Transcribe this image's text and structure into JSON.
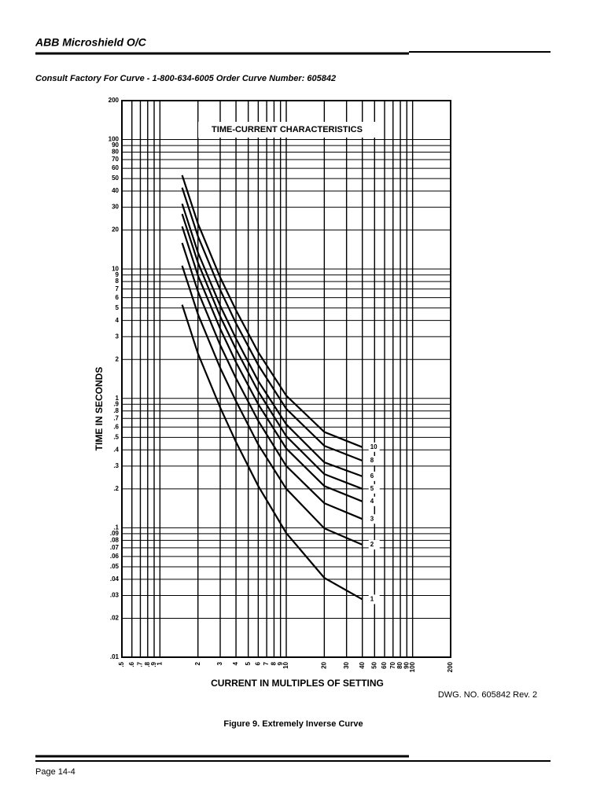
{
  "header": {
    "title": "ABB Microshield O/C"
  },
  "subtitle": "Consult Factory For Curve - 1-800-634-6005  Order Curve Number:  605842",
  "chart_data": {
    "type": "line",
    "title": "TIME-CURRENT CHARACTERISTICS",
    "x_label": "CURRENT IN MULTIPLES OF SETTING",
    "y_label": "TIME IN SECONDS",
    "log_x": true,
    "log_y": true,
    "grid": true,
    "xlim": [
      0.5,
      200
    ],
    "ylim": [
      0.01,
      200
    ],
    "xticks": [
      {
        "value": 0.5,
        "label": ".5"
      },
      {
        "value": 0.6,
        "label": ".6"
      },
      {
        "value": 0.7,
        "label": ".7"
      },
      {
        "value": 0.8,
        "label": ".8"
      },
      {
        "value": 0.9,
        "label": ".9"
      },
      1,
      2,
      3,
      4,
      5,
      6,
      7,
      8,
      9,
      10,
      20,
      30,
      40,
      50,
      60,
      70,
      80,
      90,
      100,
      200
    ],
    "yticks": [
      {
        "value": 0.01,
        "label": ".01"
      },
      {
        "value": 0.02,
        "label": ".02"
      },
      {
        "value": 0.03,
        "label": ".03"
      },
      {
        "value": 0.04,
        "label": ".04"
      },
      {
        "value": 0.05,
        "label": ".05"
      },
      {
        "value": 0.06,
        "label": ".06"
      },
      {
        "value": 0.07,
        "label": ".07"
      },
      {
        "value": 0.08,
        "label": ".08"
      },
      {
        "value": 0.09,
        "label": ".09"
      },
      {
        "value": 0.1,
        "label": ".1"
      },
      {
        "value": 0.2,
        "label": ".2"
      },
      {
        "value": 0.3,
        "label": ".3"
      },
      {
        "value": 0.4,
        "label": ".4"
      },
      {
        "value": 0.5,
        "label": ".5"
      },
      {
        "value": 0.6,
        "label": ".6"
      },
      {
        "value": 0.7,
        "label": ".7"
      },
      {
        "value": 0.8,
        "label": ".8"
      },
      {
        "value": 0.9,
        "label": ".9"
      },
      1,
      2,
      3,
      4,
      5,
      6,
      7,
      8,
      9,
      10,
      20,
      30,
      40,
      50,
      60,
      70,
      80,
      90,
      100,
      200
    ],
    "x": [
      1.5,
      2,
      3,
      4,
      6,
      10,
      20,
      40
    ],
    "series": [
      {
        "name": "1",
        "color": "#000000",
        "values": [
          5.3,
          2.22,
          0.85,
          0.46,
          0.21,
          0.091,
          0.041,
          0.028
        ]
      },
      {
        "name": "2",
        "color": "#000000",
        "values": [
          10.6,
          4.47,
          1.72,
          0.95,
          0.44,
          0.2,
          0.099,
          0.074
        ]
      },
      {
        "name": "3",
        "color": "#000000",
        "values": [
          15.9,
          6.7,
          2.58,
          1.43,
          0.67,
          0.3,
          0.155,
          0.117
        ]
      },
      {
        "name": "4",
        "color": "#000000",
        "values": [
          21.3,
          8.9,
          3.45,
          1.9,
          0.9,
          0.41,
          0.21,
          0.16
        ]
      },
      {
        "name": "5",
        "color": "#000000",
        "values": [
          26.6,
          11.2,
          4.3,
          2.4,
          1.13,
          0.51,
          0.26,
          0.2
        ]
      },
      {
        "name": "6",
        "color": "#000000",
        "values": [
          31.9,
          13.4,
          5.2,
          2.9,
          1.36,
          0.63,
          0.32,
          0.25
        ]
      },
      {
        "name": "8",
        "color": "#000000",
        "values": [
          42.5,
          17.9,
          6.9,
          3.8,
          1.81,
          0.83,
          0.43,
          0.33
        ]
      },
      {
        "name": "10",
        "color": "#000000",
        "values": [
          53,
          22.4,
          8.6,
          4.8,
          2.27,
          1.05,
          0.55,
          0.42
        ]
      }
    ]
  },
  "drawing_number": "DWG. NO. 605842 Rev. 2",
  "caption": "Figure 9.  Extremely Inverse Curve",
  "footer": {
    "page": "Page 14-4"
  }
}
